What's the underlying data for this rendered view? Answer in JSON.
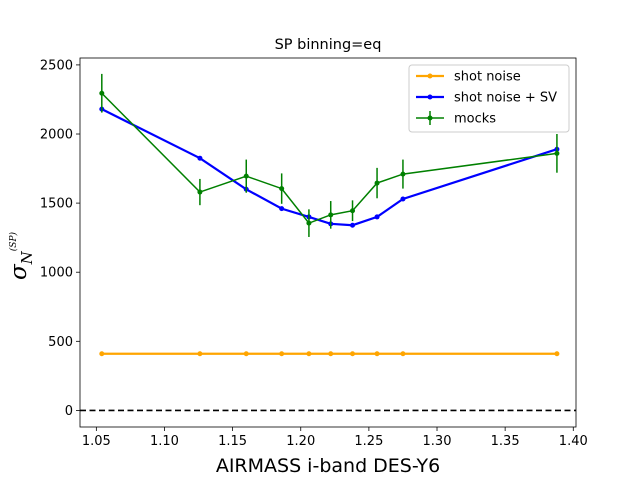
{
  "chart_data": {
    "type": "line",
    "title": "SP binning=eq",
    "xlabel": "AIRMASS i-band DES-Y6",
    "ylabel": {
      "main": "σ",
      "sub": "N",
      "sup": "(SP)"
    },
    "xlim": [
      1.038,
      1.402
    ],
    "ylim": [
      -120,
      2550
    ],
    "xticks": [
      1.05,
      1.1,
      1.15,
      1.2,
      1.25,
      1.3,
      1.35,
      1.4
    ],
    "xtick_labels": [
      "1.05",
      "1.10",
      "1.15",
      "1.20",
      "1.25",
      "1.30",
      "1.35",
      "1.40"
    ],
    "yticks": [
      0,
      500,
      1000,
      1500,
      2000,
      2500
    ],
    "ytick_labels": [
      "0",
      "500",
      "1000",
      "1500",
      "2000",
      "2500"
    ],
    "grid": false,
    "legend_placement": "top-right",
    "reference_line": {
      "y": 0,
      "style": "dashed",
      "color": "#000000"
    },
    "x": [
      1.054,
      1.126,
      1.16,
      1.186,
      1.206,
      1.222,
      1.238,
      1.256,
      1.275,
      1.388
    ],
    "series": [
      {
        "name": "shot noise",
        "color": "#ffa500",
        "values": [
          410,
          410,
          410,
          410,
          410,
          410,
          410,
          410,
          410,
          410
        ]
      },
      {
        "name": "shot noise + SV",
        "color": "#0000ff",
        "values": [
          2180,
          1825,
          1600,
          1460,
          1400,
          1350,
          1340,
          1400,
          1530,
          1890
        ]
      },
      {
        "name": "mocks",
        "color": "#008000",
        "values": [
          2295,
          1580,
          1695,
          1605,
          1355,
          1415,
          1445,
          1645,
          1710,
          1860
        ],
        "errors": [
          140,
          95,
          120,
          110,
          100,
          100,
          75,
          110,
          105,
          140
        ]
      }
    ]
  }
}
